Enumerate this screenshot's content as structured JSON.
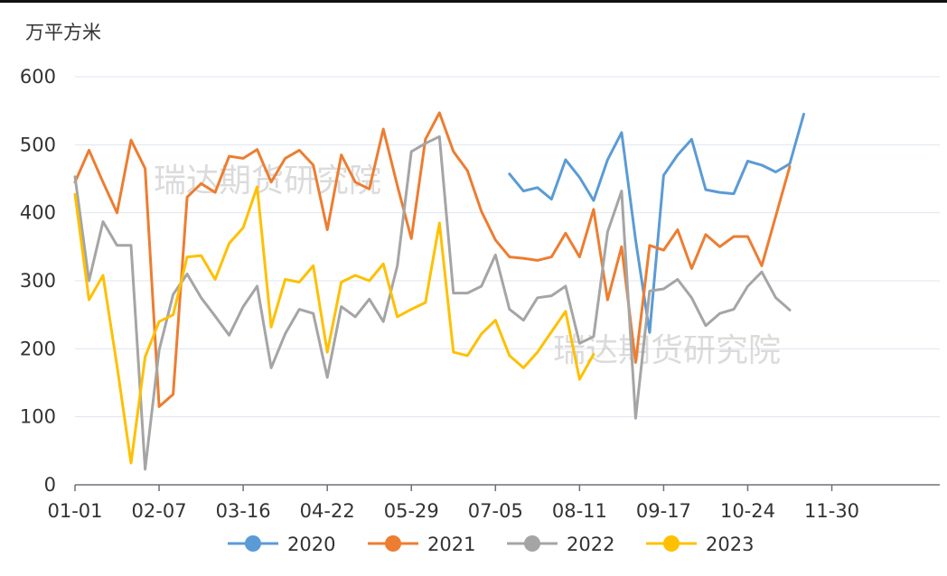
{
  "unit": "万平方米",
  "watermark": "瑞达期货研究院",
  "chart_data": {
    "type": "line",
    "y_ticks": [
      0,
      100,
      200,
      300,
      400,
      500,
      600
    ],
    "ylim": [
      0,
      600
    ],
    "x_tick_labels": [
      "01-01",
      "02-07",
      "03-16",
      "04-22",
      "05-29",
      "07-05",
      "08-11",
      "09-17",
      "10-24",
      "11-30"
    ],
    "grid": true,
    "legend_position": "bottom",
    "series": [
      {
        "name": "2020",
        "color": "#5b9bd5",
        "start": 31,
        "values": [
          457,
          432,
          437,
          420,
          478,
          452,
          418,
          478,
          518,
          360,
          224,
          455,
          485,
          508,
          434,
          430,
          428,
          476,
          470,
          460,
          472,
          545
        ]
      },
      {
        "name": "2021",
        "color": "#ed7d31",
        "start": 0,
        "values": [
          445,
          492,
          445,
          400,
          507,
          465,
          115,
          133,
          423,
          443,
          430,
          483,
          480,
          493,
          445,
          480,
          492,
          470,
          375,
          485,
          445,
          435,
          523,
          440,
          362,
          508,
          547,
          490,
          462,
          402,
          360,
          335,
          333,
          330,
          335,
          370,
          335,
          405,
          272,
          350,
          180,
          352,
          345,
          375,
          318,
          368,
          350,
          365,
          365,
          322,
          395,
          468
        ]
      },
      {
        "name": "2022",
        "color": "#a5a5a5",
        "start": 0,
        "values": [
          453,
          300,
          387,
          352,
          352,
          23,
          198,
          280,
          310,
          275,
          248,
          220,
          262,
          292,
          172,
          222,
          258,
          252,
          158,
          262,
          247,
          273,
          240,
          322,
          490,
          502,
          512,
          282,
          282,
          292,
          338,
          258,
          242,
          275,
          278,
          292,
          208,
          218,
          372,
          432,
          98,
          285,
          288,
          302,
          275,
          234,
          252,
          258,
          292,
          313,
          275,
          257
        ]
      },
      {
        "name": "2023",
        "color": "#ffc000",
        "start": 0,
        "values": [
          427,
          272,
          308,
          175,
          32,
          188,
          240,
          250,
          335,
          337,
          302,
          355,
          378,
          438,
          232,
          302,
          298,
          322,
          195,
          298,
          308,
          300,
          325,
          247,
          258,
          268,
          385,
          195,
          190,
          222,
          242,
          190,
          172,
          195,
          225,
          255,
          155,
          192
        ]
      }
    ]
  }
}
